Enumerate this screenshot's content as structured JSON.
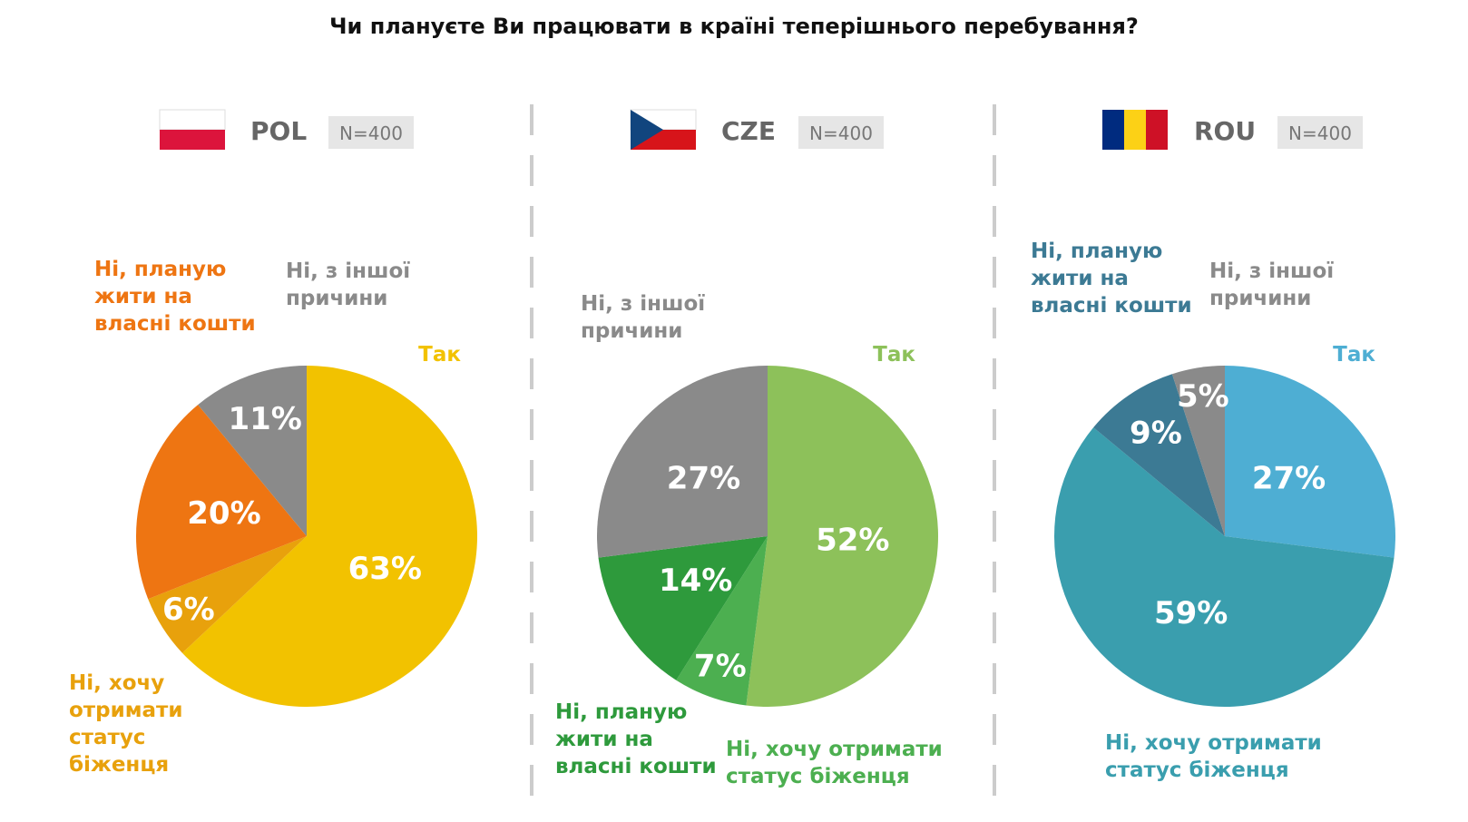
{
  "title": "Чи плануєте Ви працювати в країні теперішнього перебування?",
  "chart_data": [
    {
      "type": "pie",
      "country": "POL",
      "sample": "N=400",
      "categories": [
        "Так",
        "Ні, хочу отримати статус біженця",
        "Ні, планую жити на власні кошти",
        "Ні, з іншої причини"
      ],
      "values": [
        63,
        6,
        20,
        11
      ],
      "value_labels": [
        "63%",
        "6%",
        "20%",
        "11%"
      ],
      "colors": [
        "#f2c200",
        "#e8a10c",
        "#ee7512",
        "#8a8a8a"
      ]
    },
    {
      "type": "pie",
      "country": "CZE",
      "sample": "N=400",
      "categories": [
        "Так",
        "Ні, хочу отримати статус біженця",
        "Ні, планую жити на власні кошти",
        "Ні, з іншої причини"
      ],
      "values": [
        52,
        7,
        14,
        27
      ],
      "value_labels": [
        "52%",
        "7%",
        "14%",
        "27%"
      ],
      "colors": [
        "#8dc15a",
        "#4caf50",
        "#2e9a3c",
        "#8a8a8a"
      ]
    },
    {
      "type": "pie",
      "country": "ROU",
      "sample": "N=400",
      "categories": [
        "Так",
        "Ні, хочу отримати статус біженця",
        "Ні, планую жити на власні кошти",
        "Ні, з іншої причини"
      ],
      "values": [
        27,
        59,
        9,
        5
      ],
      "value_labels": [
        "27%",
        "59%",
        "9%",
        "5%"
      ],
      "colors": [
        "#4eaed3",
        "#3a9eae",
        "#3c7a94",
        "#8a8a8a"
      ]
    }
  ]
}
